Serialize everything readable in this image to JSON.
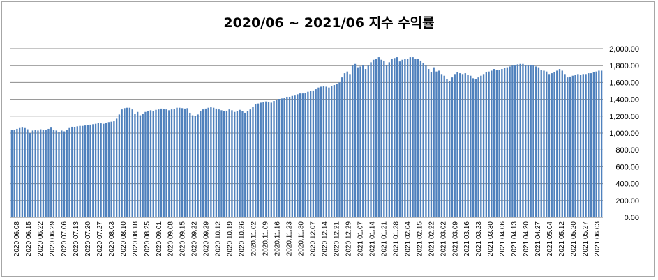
{
  "chart_data": {
    "type": "bar",
    "title": "2020/06 ~ 2021/06 지수 수익률",
    "xlabel": "",
    "ylabel": "",
    "ylim": [
      0,
      2000
    ],
    "y_ticks": [
      "0.00",
      "200.00",
      "400.00",
      "600.00",
      "800.00",
      "1,000.00",
      "1,200.00",
      "1,400.00",
      "1,600.00",
      "1,800.00",
      "2,000.00"
    ],
    "y_axis_side": "right",
    "grid": true,
    "legend": "none",
    "bar_color": "#4f81bd",
    "x_tick_labels": [
      "2020.06.08",
      "2020.06.15",
      "2020.06.22",
      "2020.06.29",
      "2020.07.06",
      "2020.07.13",
      "2020.07.20",
      "2020.07.27",
      "2020.08.03",
      "2020.08.10",
      "2020.08.18",
      "2020.08.25",
      "2020.09.01",
      "2020.09.08",
      "2020.09.15",
      "2020.09.22",
      "2020.09.29",
      "2020.10.12",
      "2020.10.19",
      "2020.10.26",
      "2020.11.02",
      "2020.11.09",
      "2020.11.16",
      "2020.11.23",
      "2020.11.30",
      "2020.12.07",
      "2020.12.14",
      "2020.12.21",
      "2020.12.29",
      "2021.01.07",
      "2021.01.14",
      "2021.01.21",
      "2021.01.28",
      "2021.02.04",
      "2021.02.15",
      "2021.02.22",
      "2021.03.02",
      "2021.03.09",
      "2021.03.16",
      "2021.03.23",
      "2021.03.30",
      "2021.04.06",
      "2021.04.13",
      "2021.04.20",
      "2021.04.27",
      "2021.05.04",
      "2021.05.12",
      "2021.05.20",
      "2021.05.27",
      "2021.06.03"
    ],
    "values": [
      1040,
      1040,
      1050,
      1060,
      1065,
      1060,
      1045,
      1000,
      1030,
      1040,
      1030,
      1045,
      1035,
      1040,
      1050,
      1065,
      1040,
      1030,
      1010,
      1030,
      1020,
      1040,
      1060,
      1075,
      1070,
      1080,
      1085,
      1085,
      1090,
      1095,
      1100,
      1105,
      1110,
      1120,
      1115,
      1110,
      1120,
      1130,
      1135,
      1140,
      1170,
      1220,
      1280,
      1295,
      1300,
      1300,
      1280,
      1230,
      1250,
      1210,
      1230,
      1250,
      1260,
      1270,
      1260,
      1275,
      1280,
      1290,
      1285,
      1280,
      1270,
      1280,
      1285,
      1300,
      1300,
      1295,
      1290,
      1295,
      1240,
      1210,
      1200,
      1220,
      1260,
      1280,
      1290,
      1300,
      1305,
      1300,
      1290,
      1280,
      1270,
      1260,
      1265,
      1280,
      1270,
      1250,
      1260,
      1275,
      1260,
      1240,
      1260,
      1280,
      1310,
      1340,
      1350,
      1360,
      1370,
      1375,
      1370,
      1360,
      1380,
      1395,
      1405,
      1410,
      1420,
      1430,
      1430,
      1440,
      1445,
      1460,
      1470,
      1470,
      1475,
      1490,
      1500,
      1505,
      1520,
      1540,
      1550,
      1555,
      1550,
      1540,
      1560,
      1570,
      1580,
      1600,
      1660,
      1710,
      1730,
      1700,
      1800,
      1820,
      1780,
      1790,
      1810,
      1760,
      1800,
      1840,
      1870,
      1880,
      1900,
      1870,
      1860,
      1810,
      1840,
      1880,
      1890,
      1900,
      1850,
      1870,
      1880,
      1880,
      1900,
      1900,
      1880,
      1880,
      1860,
      1830,
      1800,
      1760,
      1720,
      1780,
      1730,
      1740,
      1700,
      1680,
      1640,
      1620,
      1660,
      1700,
      1720,
      1710,
      1700,
      1710,
      1690,
      1680,
      1650,
      1640,
      1660,
      1680,
      1700,
      1720,
      1730,
      1740,
      1760,
      1750,
      1750,
      1760,
      1770,
      1780,
      1790,
      1800,
      1810,
      1815,
      1820,
      1820,
      1810,
      1810,
      1810,
      1810,
      1790,
      1780,
      1750,
      1740,
      1730,
      1700,
      1710,
      1720,
      1740,
      1760,
      1740,
      1700,
      1660,
      1670,
      1680,
      1690,
      1700,
      1690,
      1700,
      1700,
      1710,
      1710,
      1720,
      1730,
      1740,
      1740
    ]
  }
}
